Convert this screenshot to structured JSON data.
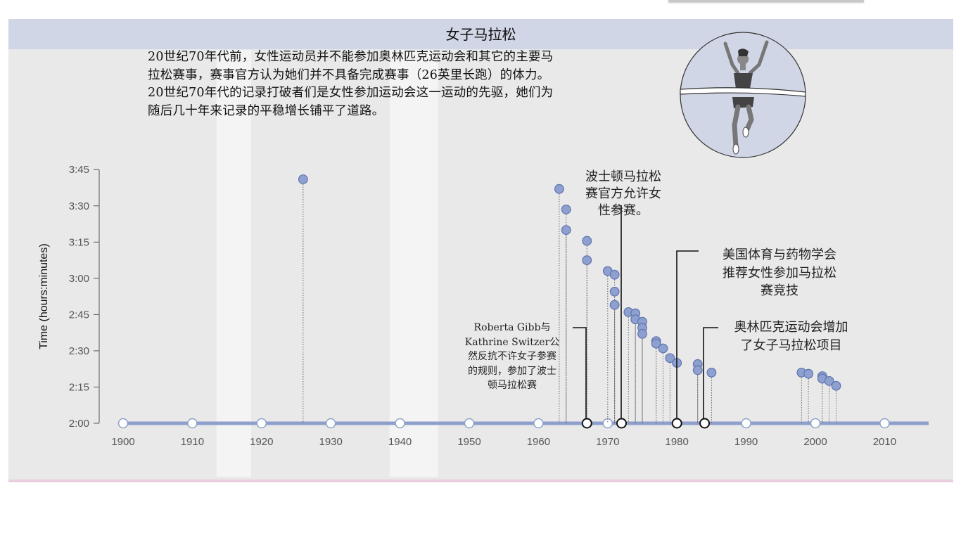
{
  "title": "女子马拉松",
  "intro_lines": [
    "20世纪70年代前，女性运动员并不能参加奥林匹克运动会和其它的主要马",
    "拉松赛事，赛事官方认为她们并不具备完成赛事（26英里长跑）的体力。",
    "20世纪70年代的记录打破者们是女性参加运动会这一运动的先驱，她们为",
    "随后几十年来记录的平稳增长铺平了道路。"
  ],
  "illustration": "runner-crossing-finish-line-icon",
  "annotations": [
    {
      "year": 1967,
      "lines": [
        "Roberta Gibb与",
        "Kathrine Switzer公",
        "然反抗不许女子参赛",
        "的规则，参加了波士",
        "顿马拉松赛"
      ]
    },
    {
      "year": 1972,
      "lines": [
        "波士顿马拉松",
        "赛官方允许女",
        "性参赛。"
      ]
    },
    {
      "year": 1980,
      "lines": [
        "美国体育与药物学会",
        "推荐女性参加马拉松",
        "赛竞技"
      ]
    },
    {
      "year": 1984,
      "lines": [
        "奥林匹克运动会增加",
        "了女子马拉松项目"
      ]
    }
  ],
  "chart_data": {
    "type": "scatter",
    "ylabel": "Time (hours:minutes)",
    "xlabel": "",
    "xlim": [
      1897,
      2016
    ],
    "ylim": [
      120,
      225
    ],
    "x_ticks": [
      1900,
      1910,
      1920,
      1930,
      1940,
      1950,
      1960,
      1970,
      1980,
      1990,
      2000,
      2010
    ],
    "y_ticks": [
      {
        "value": 120,
        "label": "2:00"
      },
      {
        "value": 135,
        "label": "2:15"
      },
      {
        "value": 150,
        "label": "2:30"
      },
      {
        "value": 165,
        "label": "2:45"
      },
      {
        "value": 180,
        "label": "3:00"
      },
      {
        "value": 195,
        "label": "3:15"
      },
      {
        "value": 210,
        "label": "3:30"
      },
      {
        "value": 225,
        "label": "3:45"
      }
    ],
    "shaded_periods": [
      [
        1914,
        1918
      ],
      [
        1939,
        1945
      ]
    ],
    "records": [
      {
        "x": 1926,
        "y": 221
      },
      {
        "x": 1963,
        "y": 217
      },
      {
        "x": 1964,
        "y": 208.5
      },
      {
        "x": 1964,
        "y": 200
      },
      {
        "x": 1967,
        "y": 195.5
      },
      {
        "x": 1967,
        "y": 187.5
      },
      {
        "x": 1970,
        "y": 183
      },
      {
        "x": 1971,
        "y": 181.5
      },
      {
        "x": 1971,
        "y": 174.5
      },
      {
        "x": 1971,
        "y": 169
      },
      {
        "x": 1973,
        "y": 166
      },
      {
        "x": 1974,
        "y": 165.5
      },
      {
        "x": 1974,
        "y": 163
      },
      {
        "x": 1975,
        "y": 162
      },
      {
        "x": 1975,
        "y": 159.5
      },
      {
        "x": 1975,
        "y": 157
      },
      {
        "x": 1977,
        "y": 154
      },
      {
        "x": 1977,
        "y": 153
      },
      {
        "x": 1978,
        "y": 151
      },
      {
        "x": 1979,
        "y": 147
      },
      {
        "x": 1980,
        "y": 145
      },
      {
        "x": 1983,
        "y": 144.5
      },
      {
        "x": 1983,
        "y": 142
      },
      {
        "x": 1985,
        "y": 141
      },
      {
        "x": 1998,
        "y": 141
      },
      {
        "x": 1999,
        "y": 140.5
      },
      {
        "x": 2001,
        "y": 139.5
      },
      {
        "x": 2001,
        "y": 138.5
      },
      {
        "x": 2002,
        "y": 137.5
      },
      {
        "x": 2003,
        "y": 135.5
      }
    ],
    "event_years": [
      1967,
      1972,
      1980,
      1984
    ],
    "colors": {
      "point_fill": "#8ea0d0",
      "point_stroke": "#5f74ad",
      "baseline": "#8e9fcb",
      "shade": "#f4f4f4"
    }
  }
}
